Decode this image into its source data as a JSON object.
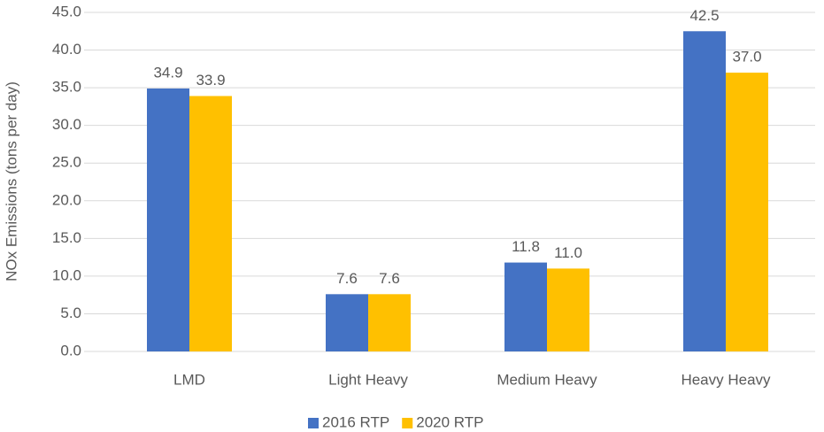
{
  "chart_data": {
    "type": "bar",
    "y_label": "NOx Emissions (tons per day)",
    "categories": [
      "LMD",
      "Light Heavy",
      "Medium Heavy",
      "Heavy Heavy"
    ],
    "series": [
      {
        "name": "2016 RTP",
        "color": "#4472c4",
        "values": [
          34.9,
          7.6,
          11.8,
          42.5
        ],
        "value_labels": [
          "34.9",
          "7.6",
          "11.8",
          "42.5"
        ]
      },
      {
        "name": "2020 RTP",
        "color": "#ffc000",
        "values": [
          33.9,
          7.6,
          11.0,
          37.0
        ],
        "value_labels": [
          "33.9",
          "7.6",
          "11.0",
          "37.0"
        ]
      }
    ],
    "ylim": [
      0,
      45
    ],
    "yticks": [
      {
        "value": 0,
        "label": "0.0"
      },
      {
        "value": 5,
        "label": "5.0"
      },
      {
        "value": 10,
        "label": "10.0"
      },
      {
        "value": 15,
        "label": "15.0"
      },
      {
        "value": 20,
        "label": "20.0"
      },
      {
        "value": 25,
        "label": "25.0"
      },
      {
        "value": 30,
        "label": "30.0"
      },
      {
        "value": 35,
        "label": "35.0"
      },
      {
        "value": 40,
        "label": "40.0"
      },
      {
        "value": 45,
        "label": "45.0"
      }
    ],
    "grid": true,
    "legend": "bottom"
  }
}
